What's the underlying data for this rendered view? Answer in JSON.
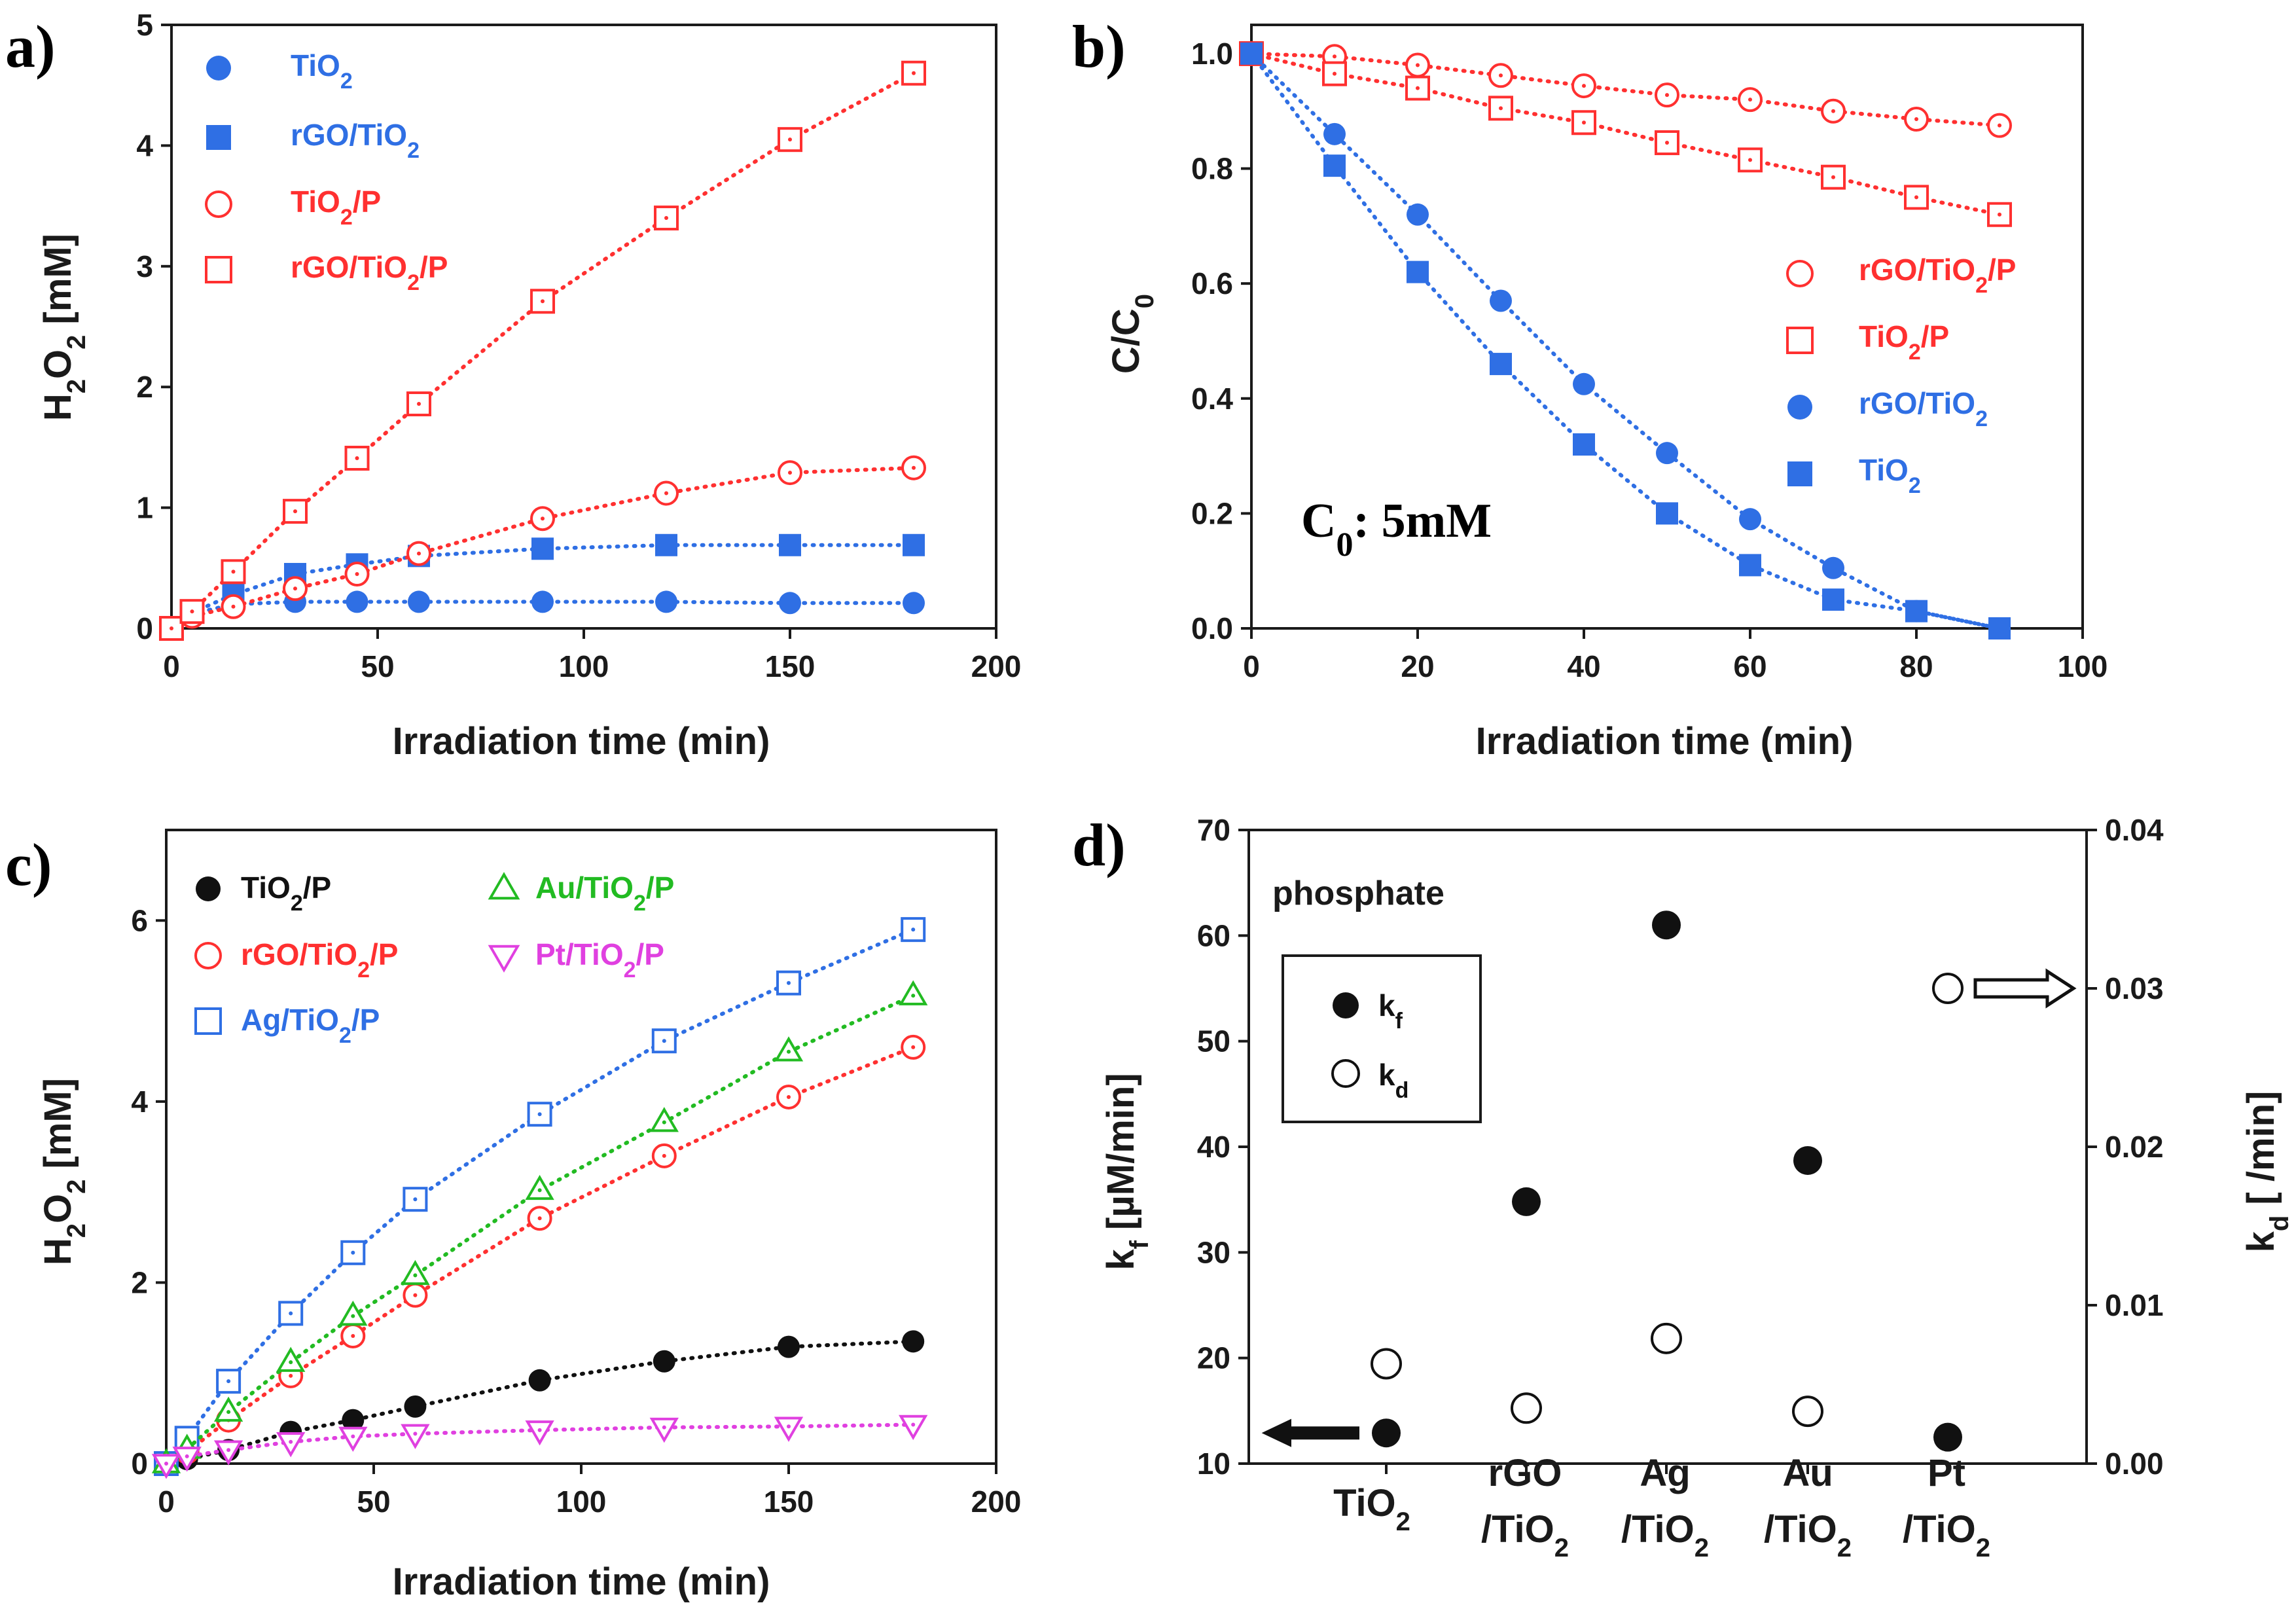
{
  "chart_data": [
    {
      "panel_label": "a)",
      "type": "scatter",
      "xlabel": "Irradiation time (min)",
      "ylabel": "H2O2 [mM]",
      "xlim": [
        0,
        200
      ],
      "ylim": [
        0,
        5
      ],
      "xticks": [
        0,
        50,
        100,
        150,
        200
      ],
      "yticks": [
        0,
        1,
        2,
        3,
        4,
        5
      ],
      "legend_position": "top-left",
      "series": [
        {
          "name": "TiO2",
          "marker": "circle",
          "filled": true,
          "color": "#2f6fe4",
          "x": [
            0,
            5,
            15,
            30,
            45,
            60,
            90,
            120,
            150,
            180
          ],
          "y": [
            0,
            0.12,
            0.2,
            0.22,
            0.22,
            0.22,
            0.22,
            0.22,
            0.21,
            0.21
          ]
        },
        {
          "name": "rGO/TiO2",
          "marker": "square",
          "filled": true,
          "color": "#2f6fe4",
          "x": [
            0,
            5,
            15,
            30,
            45,
            60,
            90,
            120,
            150,
            180
          ],
          "y": [
            0,
            0.13,
            0.28,
            0.45,
            0.53,
            0.6,
            0.66,
            0.69,
            0.69,
            0.69
          ]
        },
        {
          "name": "TiO2/P",
          "marker": "circle",
          "filled": false,
          "color": "#ff3030",
          "x": [
            0,
            5,
            15,
            30,
            45,
            60,
            90,
            120,
            150,
            180
          ],
          "y": [
            0,
            0.1,
            0.18,
            0.33,
            0.45,
            0.62,
            0.91,
            1.12,
            1.29,
            1.33
          ]
        },
        {
          "name": "rGO/TiO2/P",
          "marker": "square",
          "filled": false,
          "color": "#ff3030",
          "x": [
            0,
            5,
            15,
            30,
            45,
            60,
            90,
            120,
            150,
            180
          ],
          "y": [
            0,
            0.14,
            0.47,
            0.97,
            1.41,
            1.86,
            2.71,
            3.4,
            4.05,
            4.6
          ]
        }
      ]
    },
    {
      "panel_label": "b)",
      "type": "scatter",
      "xlabel": "Irradiation time (min)",
      "ylabel": "C/C0",
      "annotation": "C0: 5mM",
      "xlim": [
        0,
        100
      ],
      "ylim": [
        0,
        1.05
      ],
      "xticks": [
        0,
        20,
        40,
        60,
        80,
        100
      ],
      "yticks": [
        0.0,
        0.2,
        0.4,
        0.6,
        0.8,
        1.0
      ],
      "legend_position": "center-right",
      "series": [
        {
          "name": "rGO/TiO2/P",
          "marker": "circle",
          "filled": false,
          "color": "#ff3030",
          "x": [
            0,
            10,
            20,
            30,
            40,
            50,
            60,
            70,
            80,
            90
          ],
          "y": [
            1.0,
            0.995,
            0.98,
            0.962,
            0.944,
            0.928,
            0.92,
            0.9,
            0.886,
            0.875
          ]
        },
        {
          "name": "TiO2/P",
          "marker": "square",
          "filled": false,
          "color": "#ff3030",
          "x": [
            0,
            10,
            20,
            30,
            40,
            50,
            60,
            70,
            80,
            90
          ],
          "y": [
            1.0,
            0.965,
            0.94,
            0.905,
            0.88,
            0.845,
            0.815,
            0.785,
            0.75,
            0.72
          ]
        },
        {
          "name": "rGO/TiO2",
          "marker": "circle",
          "filled": true,
          "color": "#2f6fe4",
          "x": [
            0,
            10,
            20,
            30,
            40,
            50,
            60,
            70,
            80,
            90
          ],
          "y": [
            1.0,
            0.86,
            0.72,
            0.57,
            0.425,
            0.305,
            0.19,
            0.105,
            0.03,
            0.0
          ]
        },
        {
          "name": "TiO2",
          "marker": "square",
          "filled": true,
          "color": "#2f6fe4",
          "x": [
            0,
            10,
            20,
            30,
            40,
            50,
            60,
            70,
            80,
            90
          ],
          "y": [
            1.0,
            0.805,
            0.62,
            0.46,
            0.32,
            0.2,
            0.11,
            0.05,
            0.03,
            0.0
          ]
        }
      ]
    },
    {
      "panel_label": "c)",
      "type": "scatter",
      "xlabel": "Irradiation time (min)",
      "ylabel": "H2O2 [mM]",
      "xlim": [
        0,
        200
      ],
      "ylim": [
        0,
        7
      ],
      "xticks": [
        0,
        50,
        100,
        150,
        200
      ],
      "yticks": [
        0,
        2,
        4,
        6
      ],
      "legend_position": "top-left",
      "series": [
        {
          "name": "TiO2/P",
          "marker": "circle",
          "filled": true,
          "color": "#111111",
          "x": [
            0,
            5,
            15,
            30,
            45,
            60,
            90,
            120,
            150,
            180
          ],
          "y": [
            0,
            0.05,
            0.15,
            0.35,
            0.48,
            0.63,
            0.92,
            1.13,
            1.29,
            1.35
          ]
        },
        {
          "name": "rGO/TiO2/P",
          "marker": "circle",
          "filled": false,
          "color": "#ff3030",
          "x": [
            0,
            5,
            15,
            30,
            45,
            60,
            90,
            120,
            150,
            180
          ],
          "y": [
            0,
            0.13,
            0.48,
            0.97,
            1.41,
            1.86,
            2.71,
            3.4,
            4.05,
            4.6
          ]
        },
        {
          "name": "Ag/TiO2/P",
          "marker": "square",
          "filled": false,
          "color": "#2f6fe4",
          "x": [
            0,
            5,
            15,
            30,
            45,
            60,
            90,
            120,
            150,
            180
          ],
          "y": [
            0,
            0.28,
            0.91,
            1.66,
            2.33,
            2.92,
            3.86,
            4.67,
            5.31,
            5.9
          ]
        },
        {
          "name": "Au/TiO2/P",
          "marker": "triangle-up",
          "filled": false,
          "color": "#22bb22",
          "x": [
            0,
            5,
            15,
            30,
            45,
            60,
            90,
            120,
            150,
            180
          ],
          "y": [
            0,
            0.16,
            0.57,
            1.12,
            1.63,
            2.08,
            3.02,
            3.77,
            4.55,
            5.17
          ]
        },
        {
          "name": "Pt/TiO2/P",
          "marker": "triangle-down",
          "filled": false,
          "color": "#e040e0",
          "x": [
            0,
            5,
            15,
            30,
            45,
            60,
            90,
            120,
            150,
            180
          ],
          "y": [
            0,
            0.08,
            0.15,
            0.24,
            0.3,
            0.33,
            0.37,
            0.4,
            0.41,
            0.43
          ]
        }
      ]
    },
    {
      "panel_label": "d)",
      "type": "scatter",
      "annotation": "phosphate",
      "categories": [
        "TiO2",
        "rGO/TiO2",
        "Ag/TiO2",
        "Au/TiO2",
        "Pt/TiO2"
      ],
      "ylabel": "kf [µM/min]",
      "y2label": "kd [ /min]",
      "ylim": [
        10,
        70
      ],
      "yticks": [
        10,
        20,
        30,
        40,
        50,
        60,
        70
      ],
      "y2lim": [
        0,
        0.04
      ],
      "y2ticks": [
        "0.00",
        "0.01",
        "0.02",
        "0.03",
        "0.04"
      ],
      "legend_position": "top-left",
      "series": [
        {
          "name": "kf",
          "axis": "left",
          "marker": "circle",
          "filled": true,
          "color": "#111111",
          "values": [
            12.9,
            34.8,
            61.0,
            38.7,
            12.5
          ]
        },
        {
          "name": "kd",
          "axis": "right",
          "marker": "circle",
          "filled": false,
          "color": "#111111",
          "values": [
            0.0063,
            0.0035,
            0.0079,
            0.0033,
            0.03
          ]
        }
      ]
    }
  ],
  "colors": {
    "blue": "#2f6fe4",
    "red": "#ff3030",
    "green": "#22bb22",
    "magenta": "#e040e0",
    "black": "#111111"
  }
}
